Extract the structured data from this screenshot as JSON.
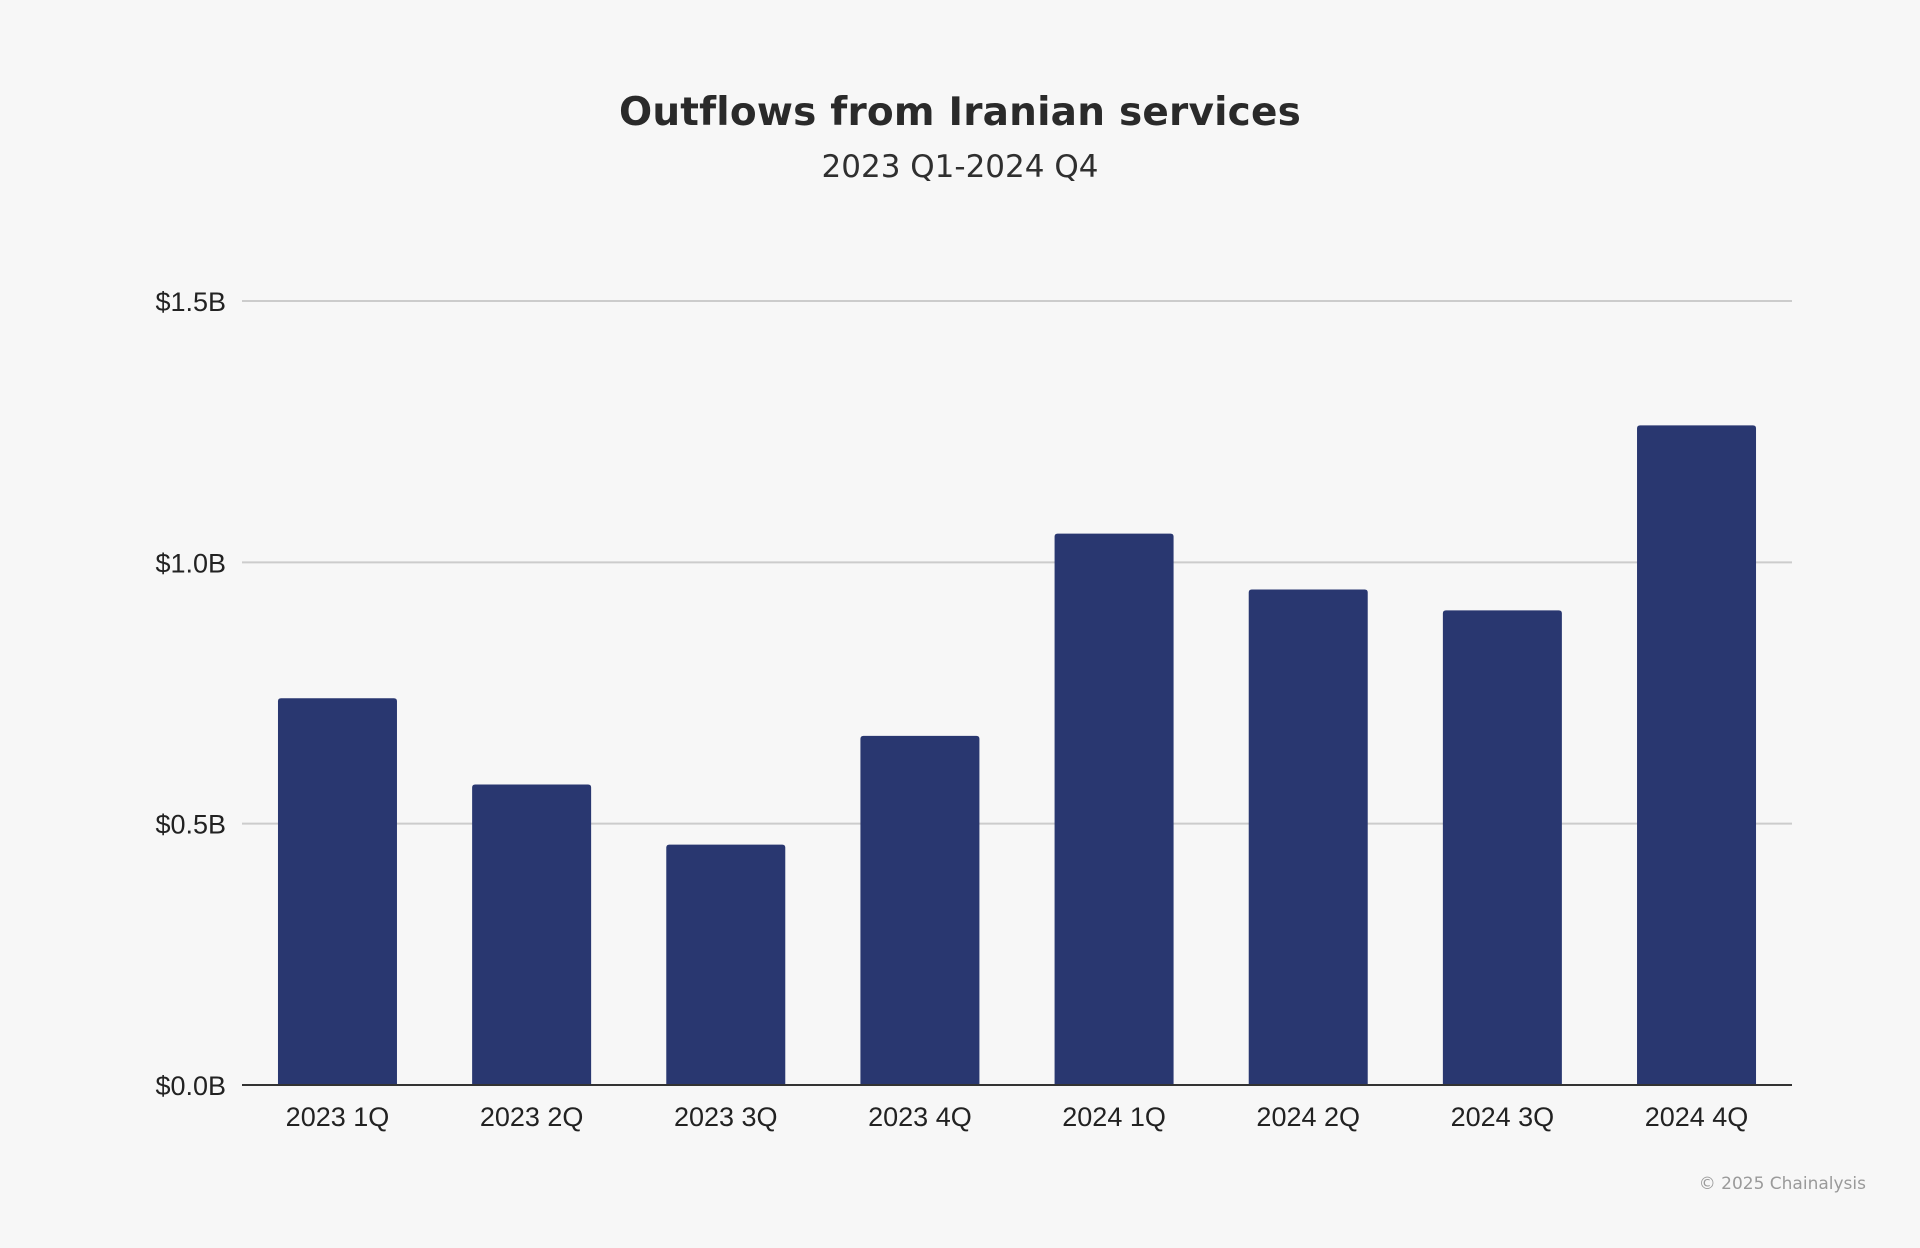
{
  "chart_data": {
    "type": "bar",
    "title": "Outflows from Iranian services",
    "subtitle": "2023 Q1-2024 Q4",
    "categories": [
      "2023 1Q",
      "2023 2Q",
      "2023 3Q",
      "2023 4Q",
      "2024 1Q",
      "2024 2Q",
      "2024 3Q",
      "2024 4Q"
    ],
    "values": [
      0.74,
      0.575,
      0.46,
      0.668,
      1.055,
      0.948,
      0.908,
      1.262
    ],
    "unit": "B USD",
    "ylim": [
      0,
      1.5
    ],
    "yticks": [
      0,
      0.5,
      1.0,
      1.5
    ],
    "ytick_labels": [
      "$0.0B",
      "$0.5B",
      "$1.0B",
      "$1.5B"
    ],
    "xlabel": "",
    "ylabel": "",
    "grid": true,
    "legend": "none",
    "bar_color": "#293770"
  },
  "footer": {
    "copyright": "© 2025 Chainalysis"
  }
}
